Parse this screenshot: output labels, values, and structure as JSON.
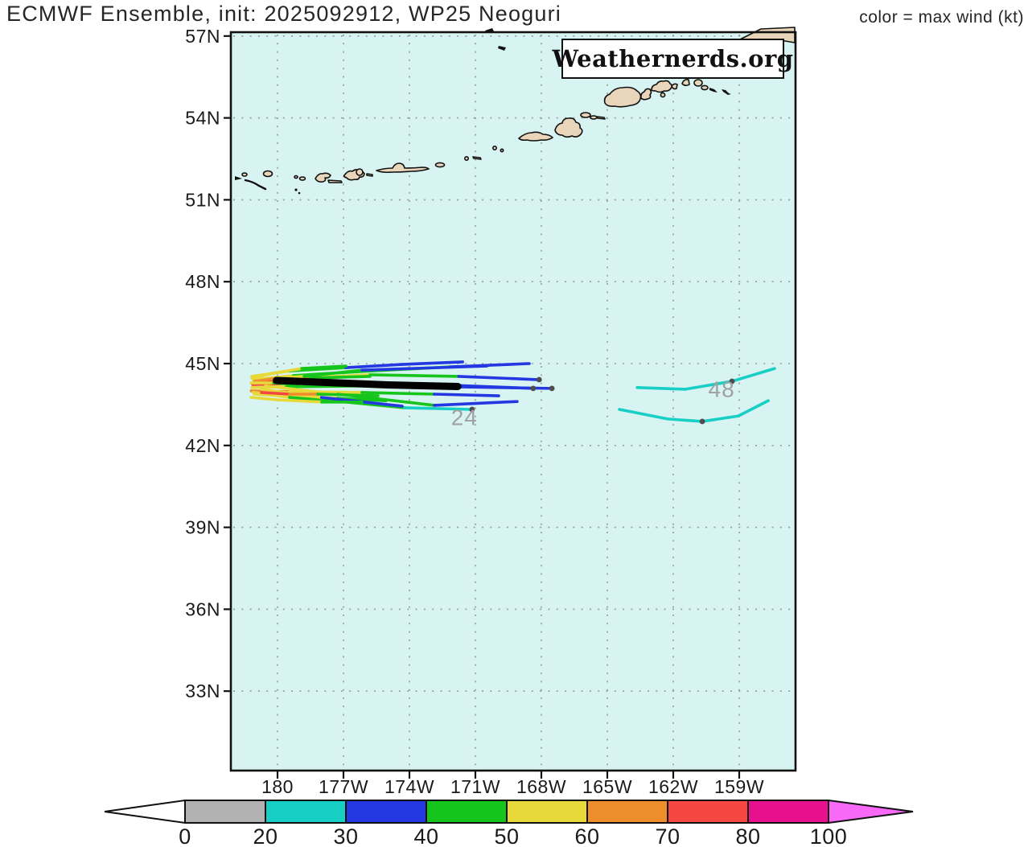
{
  "title": "ECMWF Ensemble, init: 2025092912, WP25 Neoguri",
  "legend_note": "color = max wind (kt)",
  "watermark": "Weathernerds.org",
  "colors": {
    "ocean": "#d7f4f2",
    "land": "#e9d6ba",
    "grid": "#999999",
    "border": "#111111",
    "mean_track": "#000000",
    "position_dot": "#4d4d4d",
    "hour_label": "#a0a0a0",
    "axis_text": "#1a1a1a"
  },
  "colorbar": {
    "labels": [
      "0",
      "20",
      "30",
      "40",
      "50",
      "60",
      "70",
      "80",
      "100"
    ],
    "segment_colors": [
      "#b2b2b2",
      "#17cfc4",
      "#2438e2",
      "#16c51c",
      "#e8d93a",
      "#ee8d2c",
      "#f54742",
      "#e8118d"
    ],
    "under_arrow_color": "#ffffff",
    "over_arrow_color": "#f869f8"
  },
  "chart_data": {
    "type": "line",
    "subtype": "tropical-cyclone-ensemble-tracks",
    "model": "ECMWF Ensemble",
    "init_time": "2025092912",
    "storm_id": "WP25",
    "storm_name": "Neoguri",
    "color_meaning": "max wind (kt)",
    "grid": true,
    "x_axis": {
      "label": "longitude",
      "tick_labels": [
        "180",
        "177W",
        "174W",
        "171W",
        "168W",
        "165W",
        "162W",
        "159W"
      ],
      "tick_lons": [
        -180,
        -177,
        -174,
        -171,
        -168,
        -165,
        -162,
        -159
      ],
      "lon_range": [
        -182.1,
        -156.4
      ]
    },
    "y_axis": {
      "label": "latitude",
      "tick_labels": [
        "57N",
        "54N",
        "51N",
        "48N",
        "45N",
        "42N",
        "39N",
        "36N",
        "33N"
      ],
      "tick_lats": [
        57,
        54,
        51,
        48,
        45,
        42,
        39,
        36,
        33
      ],
      "lat_range": [
        30.1,
        57.1
      ]
    },
    "wind_scale": {
      "levels": [
        0,
        20,
        30,
        40,
        50,
        60,
        70,
        80,
        100
      ],
      "colors": [
        "#b2b2b2",
        "#17cfc4",
        "#2438e2",
        "#16c51c",
        "#e8d93a",
        "#ee8d2c",
        "#f54742",
        "#e8118d"
      ],
      "over_color": "#f869f8"
    },
    "hour_labels": [
      {
        "text": "24",
        "lon": -171.5,
        "lat": 42.75
      },
      {
        "text": "48",
        "lon": -159.8,
        "lat": 43.78
      }
    ],
    "mean_track": {
      "points": [
        [
          -180.05,
          44.38
        ],
        [
          -177.5,
          44.3
        ],
        [
          -175.0,
          44.22
        ],
        [
          -171.8,
          44.16
        ]
      ]
    },
    "members": [
      {
        "points": [
          [
            -181.17,
            44.53
          ],
          [
            -179.45,
            44.73
          ],
          [
            -176.89,
            44.85
          ],
          [
            -174.33,
            44.97
          ],
          [
            -171.58,
            45.06
          ]
        ],
        "winds": [
          55,
          46,
          38,
          34
        ]
      },
      {
        "points": [
          [
            -181.1,
            44.41
          ],
          [
            -179.27,
            44.56
          ],
          [
            -176.16,
            44.71
          ],
          [
            -172.13,
            44.88
          ],
          [
            -168.55,
            45.0
          ]
        ],
        "winds": [
          57,
          46,
          42,
          34
        ]
      },
      {
        "points": [
          [
            -181.06,
            44.35
          ],
          [
            -179.08,
            44.47
          ],
          [
            -175.79,
            44.59
          ],
          [
            -171.76,
            44.53
          ],
          [
            -168.1,
            44.41
          ]
        ],
        "winds": [
          63,
          50,
          42,
          33
        ]
      },
      {
        "points": [
          [
            -181.13,
            44.23
          ],
          [
            -179.8,
            44.26
          ],
          [
            -176.9,
            44.29
          ],
          [
            -172.87,
            44.23
          ],
          [
            -168.37,
            44.09
          ]
        ],
        "winds": [
          72,
          56,
          45,
          36
        ]
      },
      {
        "points": [
          [
            -181.17,
            44.12
          ],
          [
            -179.6,
            44.15
          ],
          [
            -176.3,
            44.18
          ],
          [
            -172.1,
            44.15
          ],
          [
            -167.52,
            44.09
          ]
        ],
        "winds": [
          55,
          48,
          44,
          35
        ]
      },
      {
        "points": [
          [
            -181.2,
            44.0
          ],
          [
            -179.45,
            43.97
          ],
          [
            -176.16,
            43.94
          ],
          [
            -172.87,
            43.88
          ],
          [
            -169.94,
            43.82
          ]
        ],
        "winds": [
          60,
          52,
          44,
          36
        ]
      },
      {
        "points": [
          [
            -181.06,
            43.88
          ],
          [
            -179.82,
            43.82
          ],
          [
            -177.26,
            43.73
          ],
          [
            -175.06,
            43.64
          ]
        ],
        "winds": [
          58,
          50,
          44
        ]
      },
      {
        "points": [
          [
            -181.1,
            43.94
          ],
          [
            -179.45,
            43.76
          ],
          [
            -176.89,
            43.59
          ],
          [
            -174.22,
            43.38
          ],
          [
            -171.15,
            43.32
          ]
        ],
        "winds": [
          55,
          46,
          42,
          28
        ]
      },
      {
        "points": [
          [
            -180.55,
            44.18
          ],
          [
            -177.26,
            43.88
          ],
          [
            -172.87,
            43.47
          ],
          [
            -169.1,
            43.61
          ]
        ],
        "winds": [
          55,
          42,
          34
        ]
      },
      {
        "points": [
          [
            -180.73,
            44.06
          ],
          [
            -178.0,
            43.76
          ],
          [
            -174.33,
            43.44
          ]
        ],
        "winds": [
          52,
          38
        ]
      },
      {
        "points": [
          [
            -181.2,
            43.76
          ],
          [
            -180.0,
            43.67
          ],
          [
            -177.99,
            43.59
          ],
          [
            -176.16,
            43.59
          ]
        ],
        "winds": [
          56,
          52,
          47
        ]
      },
      {
        "points": [
          [
            -181.17,
            44.47
          ],
          [
            -180.18,
            44.65
          ],
          [
            -178.9,
            44.82
          ],
          [
            -176.89,
            44.91
          ]
        ],
        "winds": [
          55,
          51,
          46
        ]
      },
      {
        "points": [
          [
            -180.84,
            44.29
          ],
          [
            -179.74,
            44.41
          ],
          [
            -178.54,
            44.47
          ],
          [
            -175.79,
            44.53
          ]
        ],
        "winds": [
          74,
          66,
          46
        ]
      },
      {
        "points": [
          [
            -180.73,
            43.94
          ],
          [
            -179.45,
            43.88
          ],
          [
            -178.17,
            43.88
          ],
          [
            -175.43,
            43.82
          ]
        ],
        "winds": [
          72,
          64,
          46
        ]
      },
      {
        "points": [
          [
            -180.99,
            44.35
          ],
          [
            -180.0,
            44.47
          ],
          [
            -178.79,
            44.53
          ],
          [
            -176.16,
            44.76
          ],
          [
            -170.48,
            44.91
          ]
        ],
        "winds": [
          64,
          56,
          48,
          33
        ]
      },
      {
        "points": [
          [
            -181.2,
            44.29
          ],
          [
            -180.18,
            44.29
          ],
          [
            -179.08,
            44.23
          ]
        ],
        "winds": [
          52,
          47
        ]
      },
      {
        "points": [
          [
            -163.64,
            44.12
          ],
          [
            -161.45,
            44.06
          ],
          [
            -159.33,
            44.35
          ],
          [
            -157.39,
            44.82
          ]
        ],
        "winds": [
          25,
          25,
          26
        ]
      },
      {
        "points": [
          [
            -164.45,
            43.32
          ],
          [
            -162.25,
            42.97
          ],
          [
            -160.68,
            42.88
          ],
          [
            -159.04,
            43.08
          ],
          [
            -157.68,
            43.64
          ]
        ],
        "winds": [
          24,
          24,
          25,
          26
        ]
      }
    ],
    "position_dots": [
      [
        -168.1,
        44.41
      ],
      [
        -168.37,
        44.09
      ],
      [
        -167.52,
        44.09
      ],
      [
        -171.15,
        43.32
      ],
      [
        -159.33,
        44.35
      ],
      [
        -160.68,
        42.88
      ]
    ]
  }
}
